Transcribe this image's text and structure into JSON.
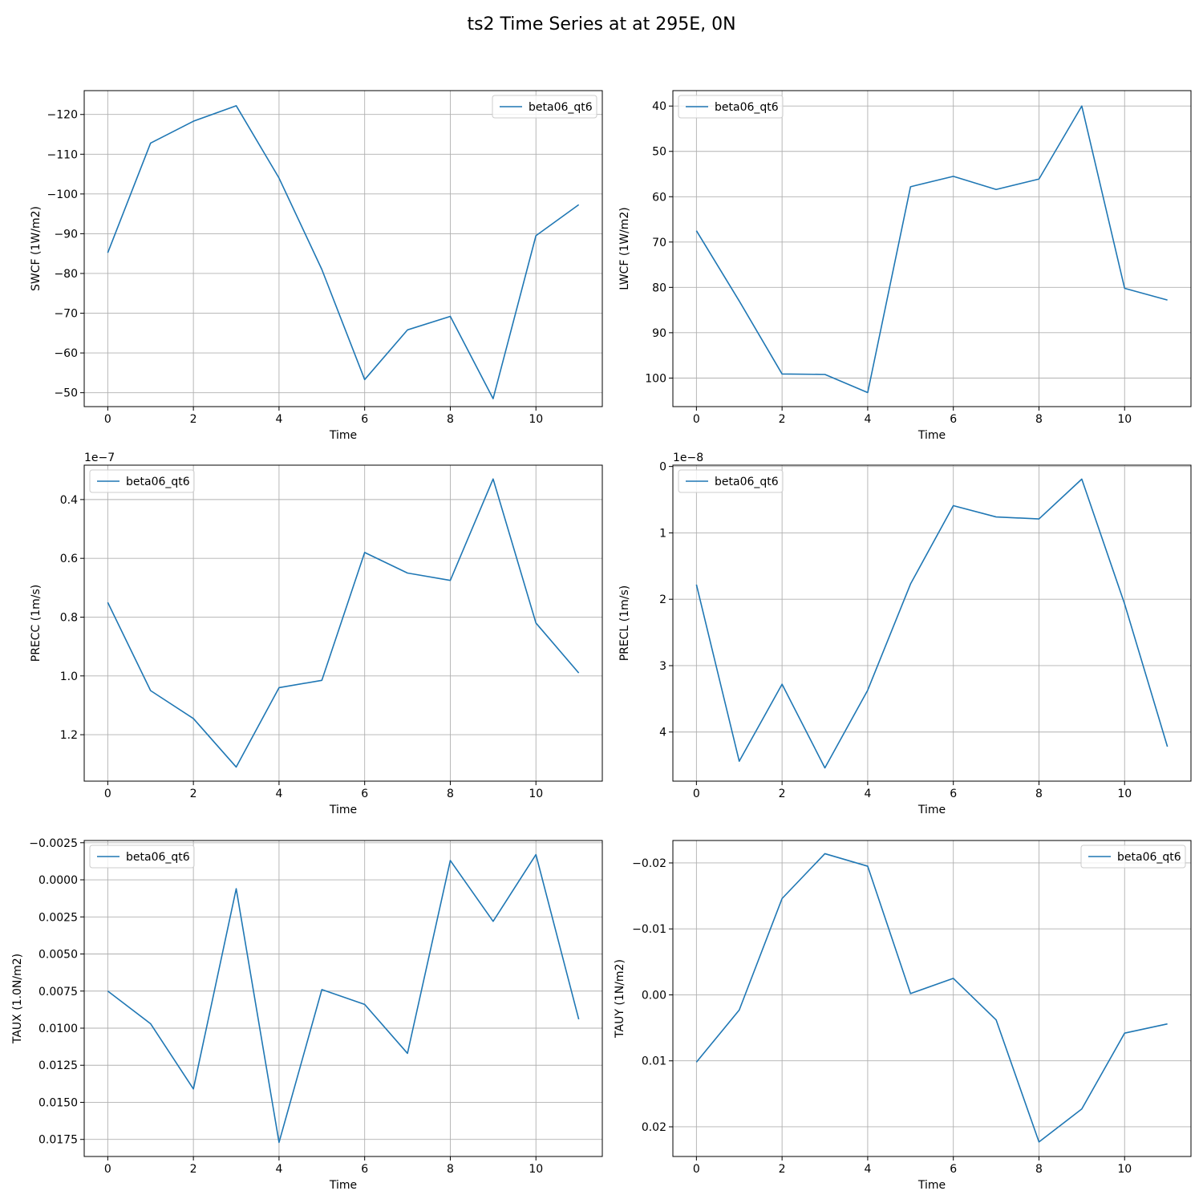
{
  "figure": {
    "title": "ts2 Time Series at at 295E, 0N",
    "colors": {
      "line": "#1f77b4",
      "grid": "#b0b0b0",
      "axes": "#000000",
      "legend_edge": "#cccccc"
    }
  },
  "chart_data": [
    {
      "type": "line",
      "ylabel": "SWCF (1W/m2)",
      "xlabel": "Time",
      "x": [
        0,
        1,
        2,
        3,
        4,
        5,
        6,
        7,
        8,
        9,
        10,
        11
      ],
      "series": [
        {
          "name": "beta06_qt6",
          "values": [
            -85.2,
            -112.8,
            -118.3,
            -122.2,
            -104.0,
            -81.0,
            -53.3,
            -65.8,
            -69.2,
            -48.5,
            -89.5,
            -97.3
          ]
        }
      ],
      "xlim": [
        -0.55,
        11.55
      ],
      "ylim": [
        -46.5,
        -126.0
      ],
      "inverted_y": true,
      "xticks": [
        0,
        2,
        4,
        6,
        8,
        10
      ],
      "yticks": [
        -120,
        -110,
        -100,
        -90,
        -80,
        -70,
        -60,
        -50
      ],
      "ytick_labels": [
        "−120",
        "−110",
        "−100",
        "−90",
        "−80",
        "−70",
        "−60",
        "−50"
      ],
      "offset_text": "",
      "legend": "upper right",
      "grid": true
    },
    {
      "type": "line",
      "ylabel": "LWCF (1W/m2)",
      "xlabel": "Time",
      "x": [
        0,
        1,
        2,
        3,
        4,
        5,
        6,
        7,
        8,
        9,
        10,
        11
      ],
      "series": [
        {
          "name": "beta06_qt6",
          "values": [
            67.5,
            83.0,
            99.1,
            99.2,
            103.2,
            57.8,
            55.5,
            58.4,
            56.1,
            40.0,
            80.2,
            82.8
          ]
        }
      ],
      "xlim": [
        -0.55,
        11.55
      ],
      "ylim": [
        106.3,
        36.6
      ],
      "inverted_y": true,
      "xticks": [
        0,
        2,
        4,
        6,
        8,
        10
      ],
      "yticks": [
        40,
        50,
        60,
        70,
        80,
        90,
        100
      ],
      "ytick_labels": [
        "40",
        "50",
        "60",
        "70",
        "80",
        "90",
        "100"
      ],
      "offset_text": "",
      "legend": "upper left",
      "grid": true
    },
    {
      "type": "line",
      "ylabel": "PRECC (1m/s)",
      "xlabel": "Time",
      "x": [
        0,
        1,
        2,
        3,
        4,
        5,
        6,
        7,
        8,
        9,
        10,
        11
      ],
      "series": [
        {
          "name": "beta06_qt6",
          "values": [
            0.75,
            1.05,
            1.145,
            1.31,
            1.04,
            1.015,
            0.58,
            0.65,
            0.675,
            0.33,
            0.82,
            0.99
          ]
        }
      ],
      "xlim": [
        -0.55,
        11.55
      ],
      "ylim": [
        1.358,
        0.283
      ],
      "inverted_y": true,
      "xticks": [
        0,
        2,
        4,
        6,
        8,
        10
      ],
      "yticks": [
        0.4,
        0.6,
        0.8,
        1.0,
        1.2
      ],
      "ytick_labels": [
        "0.4",
        "0.6",
        "0.8",
        "1.0",
        "1.2"
      ],
      "offset_text": "1e−7",
      "legend": "upper left",
      "grid": true
    },
    {
      "type": "line",
      "ylabel": "PRECL (1m/s)",
      "xlabel": "Time",
      "x": [
        0,
        1,
        2,
        3,
        4,
        5,
        6,
        7,
        8,
        9,
        10,
        11
      ],
      "series": [
        {
          "name": "beta06_qt6",
          "values": [
            1.78,
            4.44,
            3.28,
            4.54,
            3.37,
            1.77,
            0.59,
            0.76,
            0.79,
            0.19,
            2.07,
            4.22
          ]
        }
      ],
      "xlim": [
        -0.55,
        11.55
      ],
      "ylim": [
        4.74,
        -0.02
      ],
      "inverted_y": true,
      "xticks": [
        0,
        2,
        4,
        6,
        8,
        10
      ],
      "yticks": [
        0,
        1,
        2,
        3,
        4
      ],
      "ytick_labels": [
        "0",
        "1",
        "2",
        "3",
        "4"
      ],
      "offset_text": "1e−8",
      "legend": "upper left",
      "grid": true
    },
    {
      "type": "line",
      "ylabel": "TAUX (1.0N/m2)",
      "xlabel": "Time",
      "x": [
        0,
        1,
        2,
        3,
        4,
        5,
        6,
        7,
        8,
        9,
        10,
        11
      ],
      "series": [
        {
          "name": "beta06_qt6",
          "values": [
            0.0075,
            0.0097,
            0.0141,
            0.0006,
            0.0177,
            0.0074,
            0.0084,
            0.0117,
            -0.0013,
            0.0028,
            -0.0017,
            0.0094
          ]
        }
      ],
      "xlim": [
        -0.55,
        11.55
      ],
      "ylim": [
        0.01865,
        -0.00265
      ],
      "inverted_y": true,
      "xticks": [
        0,
        2,
        4,
        6,
        8,
        10
      ],
      "yticks": [
        -0.0025,
        0,
        0.0025,
        0.005,
        0.0075,
        0.01,
        0.0125,
        0.015,
        0.0175
      ],
      "ytick_labels": [
        "−0.0025",
        "0.0000",
        "0.0025",
        "0.0050",
        "0.0075",
        "0.0100",
        "0.0125",
        "0.0150",
        "0.0175"
      ],
      "offset_text": "",
      "legend": "upper left",
      "grid": true
    },
    {
      "type": "line",
      "ylabel": "TAUY (1N/m2)",
      "xlabel": "Time",
      "x": [
        0,
        1,
        2,
        3,
        4,
        5,
        6,
        7,
        8,
        9,
        10,
        11
      ],
      "series": [
        {
          "name": "beta06_qt6",
          "values": [
            0.0102,
            0.0023,
            -0.0146,
            -0.0214,
            -0.0195,
            -0.0002,
            -0.0025,
            0.0038,
            0.0223,
            0.0173,
            0.0058,
            0.0044
          ]
        }
      ],
      "xlim": [
        -0.55,
        11.55
      ],
      "ylim": [
        0.0245,
        -0.0234
      ],
      "inverted_y": true,
      "xticks": [
        0,
        2,
        4,
        6,
        8,
        10
      ],
      "yticks": [
        -0.02,
        -0.01,
        0,
        0.01,
        0.02
      ],
      "ytick_labels": [
        "−0.02",
        "−0.01",
        "0.00",
        "0.01",
        "0.02"
      ],
      "offset_text": "",
      "legend": "upper right",
      "grid": true
    }
  ]
}
